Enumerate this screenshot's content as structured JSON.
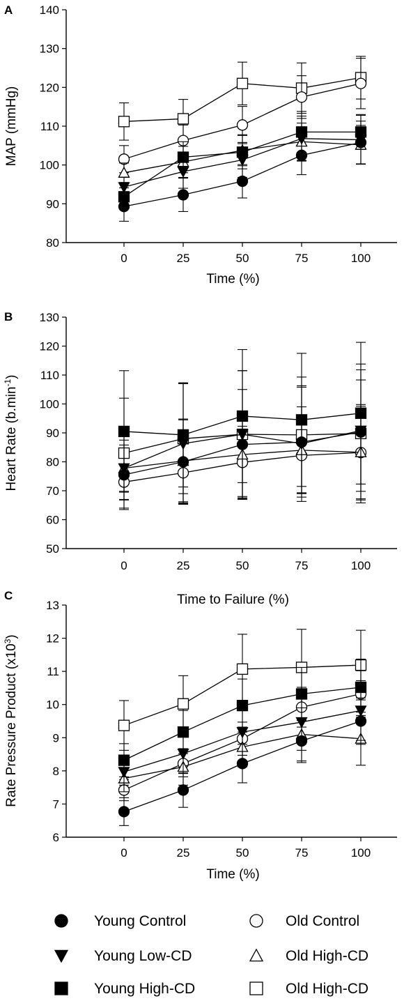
{
  "chart_data": [
    {
      "panel": "A",
      "type": "line",
      "title": "",
      "xlabel": "Time (%)",
      "ylabel": "MAP (mmHg)",
      "ylabel_sup": "",
      "ylabel_tail": "",
      "x": [
        0,
        25,
        50,
        75,
        100
      ],
      "ylim": [
        80,
        140
      ],
      "yticks": [
        80,
        90,
        100,
        110,
        120,
        130,
        140
      ],
      "grid": false,
      "series": [
        {
          "name": "Young Control",
          "values": [
            89.3,
            92.3,
            95.8,
            102.5,
            105.8
          ],
          "err": [
            3.8,
            4.3,
            4.3,
            5.0,
            5.5
          ]
        },
        {
          "name": "Old Control",
          "values": [
            101.5,
            106.3,
            110.3,
            117.5,
            121.0
          ],
          "err": [
            3.5,
            4.0,
            4.8,
            5.5,
            6.5
          ]
        },
        {
          "name": "Young Low-CD",
          "values": [
            94.3,
            98.3,
            101.3,
            106.8,
            106.5
          ],
          "err": [
            2.5,
            4.3,
            4.5,
            5.8,
            6.3
          ]
        },
        {
          "name": "Old High-CD",
          "values": [
            98.0,
            100.8,
            103.8,
            106.0,
            105.2
          ],
          "err": [
            2.5,
            4.0,
            4.0,
            4.8,
            5.0
          ]
        },
        {
          "name": "Young High-CD",
          "values": [
            91.8,
            102.0,
            103.3,
            108.5,
            108.5
          ],
          "err": [
            2.3,
            4.0,
            4.3,
            5.3,
            4.5
          ]
        },
        {
          "name": "Old High-CD",
          "values": [
            111.2,
            111.9,
            121.0,
            119.8,
            122.5
          ],
          "err": [
            4.8,
            5.0,
            5.5,
            6.5,
            5.5
          ]
        }
      ]
    },
    {
      "panel": "B",
      "type": "line",
      "title": "",
      "xlabel": "Time to Failure (%)",
      "ylabel": "Heart Rate (b.min",
      "ylabel_sup": "-1",
      "ylabel_tail": ")",
      "x": [
        0,
        25,
        50,
        75,
        100
      ],
      "ylim": [
        50,
        130
      ],
      "yticks": [
        50,
        60,
        70,
        80,
        90,
        100,
        110,
        120,
        130
      ],
      "grid": false,
      "series": [
        {
          "name": "Young Control",
          "values": [
            75.5,
            80.0,
            86.0,
            86.8,
            90.3
          ],
          "err": [
            12.0,
            14.5,
            19.0,
            19.0,
            18.0
          ]
        },
        {
          "name": "Old Control",
          "values": [
            73.0,
            76.2,
            79.8,
            82.2,
            83.2
          ],
          "err": [
            6.0,
            10.0,
            12.5,
            13.0,
            16.0
          ]
        },
        {
          "name": "Young Low-CD",
          "values": [
            77.8,
            86.3,
            89.5,
            86.3,
            90.8
          ],
          "err": [
            11.0,
            21.0,
            22.0,
            20.0,
            21.0
          ]
        },
        {
          "name": "Old High-CD",
          "values": [
            77.8,
            80.3,
            82.5,
            84.0,
            83.3
          ],
          "err": [
            8.0,
            14.5,
            14.5,
            15.0,
            16.5
          ]
        },
        {
          "name": "Young High-CD",
          "values": [
            90.5,
            89.3,
            95.8,
            94.5,
            96.8
          ],
          "err": [
            21.0,
            18.0,
            23.0,
            23.0,
            24.5
          ]
        },
        {
          "name": "Old High-CD",
          "values": [
            83.0,
            88.0,
            89.5,
            89.3,
            89.8
          ],
          "err": [
            19.0,
            19.0,
            22.0,
            20.0,
            24.0
          ]
        }
      ]
    },
    {
      "panel": "C",
      "type": "line",
      "title": "",
      "xlabel": "Time (%)",
      "ylabel": "Rate Pressure Product (x10",
      "ylabel_sup": "3",
      "ylabel_tail": ")",
      "x": [
        0,
        25,
        50,
        75,
        100
      ],
      "ylim": [
        6,
        13
      ],
      "yticks": [
        6,
        7,
        8,
        9,
        10,
        11,
        12,
        13
      ],
      "grid": false,
      "series": [
        {
          "name": "Young Control",
          "values": [
            6.77,
            7.42,
            8.22,
            8.9,
            9.5
          ],
          "err": [
            0.42,
            0.52,
            0.58,
            0.65,
            0.7
          ]
        },
        {
          "name": "Old Control",
          "values": [
            7.42,
            8.22,
            8.97,
            9.92,
            10.32
          ],
          "err": [
            0.32,
            0.4,
            0.5,
            0.6,
            0.7
          ]
        },
        {
          "name": "Young Low-CD",
          "values": [
            7.97,
            8.52,
            9.17,
            9.47,
            9.82
          ],
          "err": [
            0.4,
            0.6,
            0.7,
            0.85,
            0.9
          ]
        },
        {
          "name": "Old High-CD",
          "values": [
            7.77,
            8.12,
            8.72,
            9.1,
            8.97
          ],
          "err": [
            0.4,
            0.55,
            0.6,
            0.8,
            0.8
          ]
        },
        {
          "name": "Young High-CD",
          "values": [
            8.32,
            9.17,
            9.97,
            10.32,
            10.52
          ],
          "err": [
            0.5,
            0.65,
            0.8,
            0.8,
            0.85
          ]
        },
        {
          "name": "Old High-CD",
          "values": [
            9.37,
            10.02,
            11.07,
            11.12,
            11.19
          ],
          "err": [
            0.75,
            0.85,
            1.05,
            1.15,
            1.05
          ]
        }
      ]
    }
  ],
  "legend": {
    "placement": "bottom",
    "items": [
      {
        "label": "Young Control",
        "marker": "circle",
        "fill": "#000000"
      },
      {
        "label": "Old Control",
        "marker": "circle",
        "fill": "#ffffff"
      },
      {
        "label": "Young Low-CD",
        "marker": "triangle-down",
        "fill": "#000000"
      },
      {
        "label": "Old High-CD",
        "marker": "triangle-up",
        "fill": "#ffffff"
      },
      {
        "label": "Young High-CD",
        "marker": "square",
        "fill": "#000000"
      },
      {
        "label": "Old High-CD",
        "marker": "square",
        "fill": "#ffffff"
      }
    ]
  },
  "colors": {
    "stroke": "#000000",
    "open_fill": "#ffffff",
    "filled": "#000000"
  }
}
